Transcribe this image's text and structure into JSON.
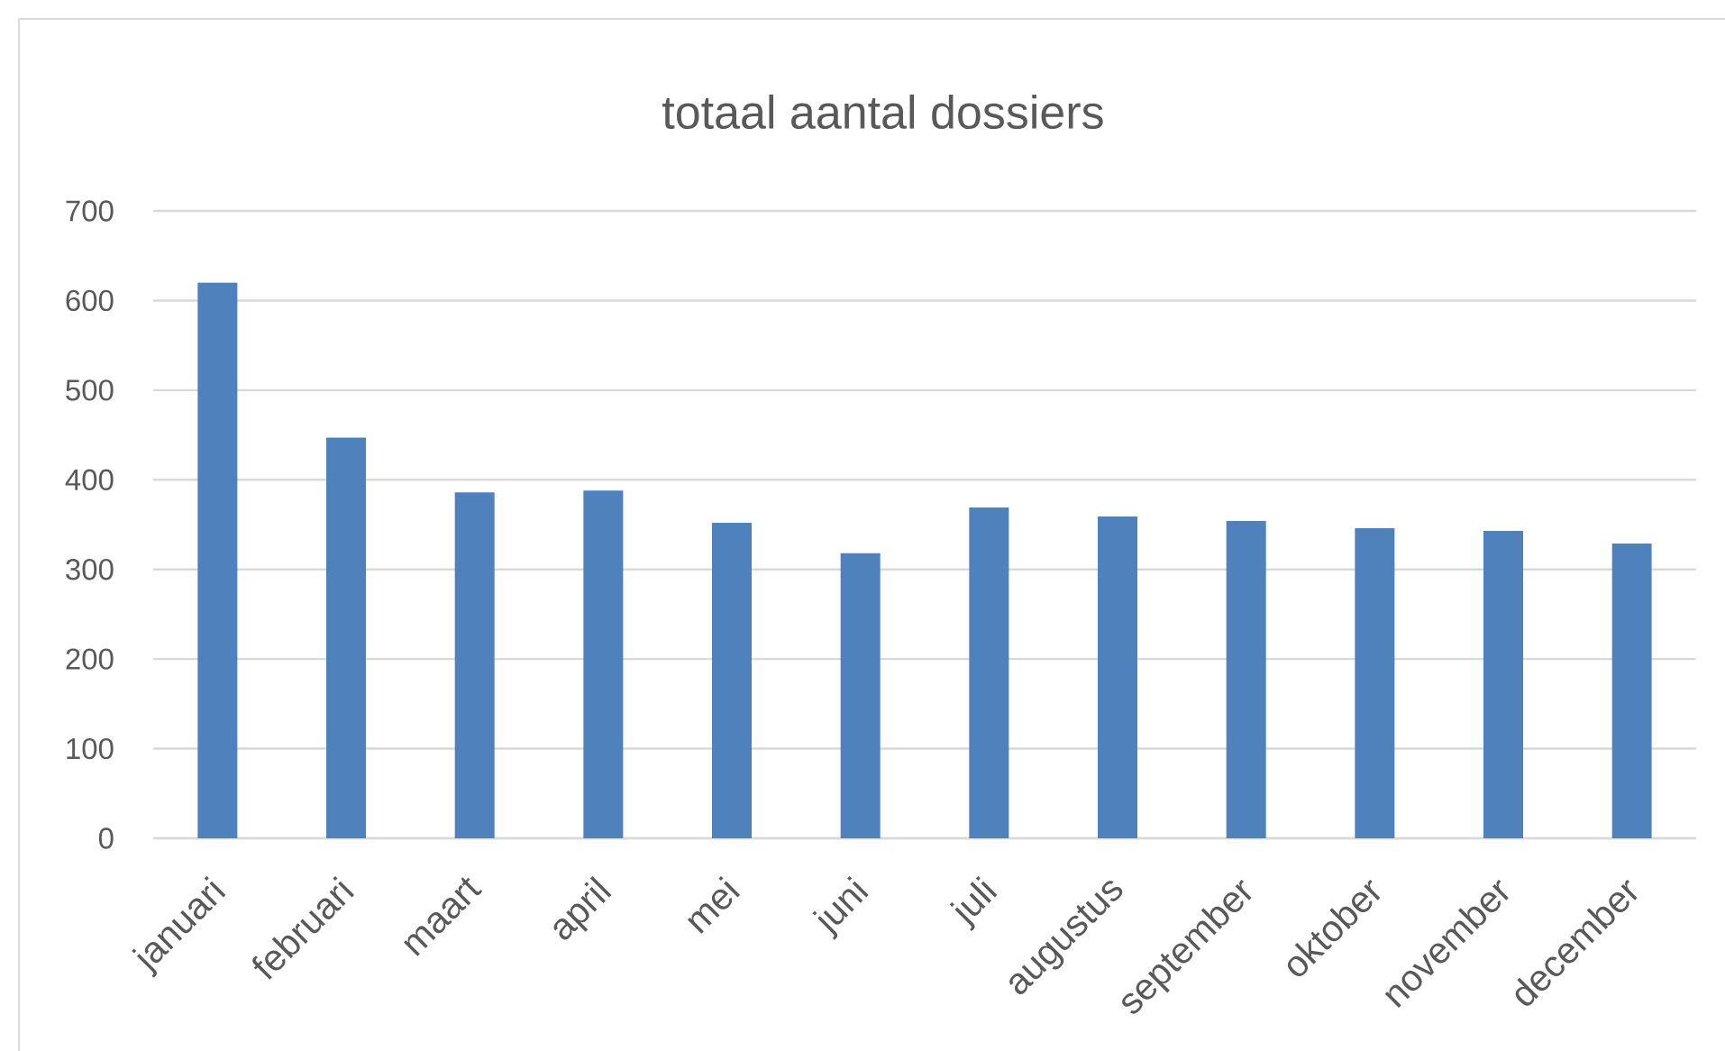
{
  "chart_data": {
    "type": "bar",
    "title": "totaal aantal dossiers",
    "categories": [
      "januari",
      "februari",
      "maart",
      "april",
      "mei",
      "juni",
      "juli",
      "augustus",
      "september",
      "oktober",
      "november",
      "december"
    ],
    "values": [
      620,
      447,
      386,
      388,
      352,
      318,
      369,
      359,
      354,
      346,
      343,
      329
    ],
    "color": "#4f81bd",
    "ylim": [
      0,
      700
    ],
    "yticks": [
      0,
      100,
      200,
      300,
      400,
      500,
      600,
      700
    ],
    "grid": "y"
  }
}
